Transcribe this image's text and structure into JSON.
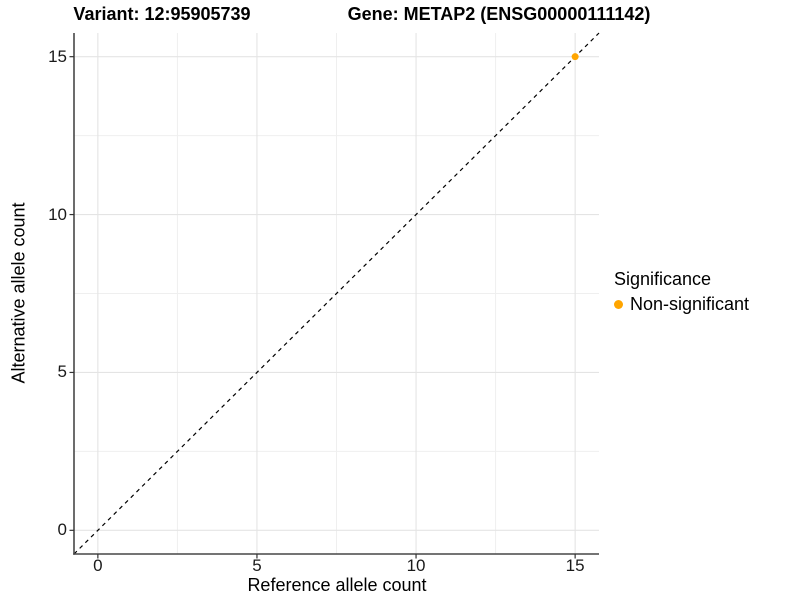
{
  "chart_data": {
    "type": "scatter",
    "titles": {
      "variant": "Variant: 12:95905739",
      "gene": "Gene: METAP2 (ENSG00000111142)"
    },
    "xlabel": "Reference allele count",
    "ylabel": "Alternative allele count",
    "xlim": [
      -0.75,
      15.75
    ],
    "ylim": [
      -0.75,
      15.75
    ],
    "x_major_ticks": [
      0,
      5,
      10,
      15
    ],
    "y_major_ticks": [
      0,
      5,
      10,
      15
    ],
    "x_minor_ticks": [
      2.5,
      7.5,
      12.5
    ],
    "y_minor_ticks": [
      2.5,
      7.5,
      12.5
    ],
    "grid": "major and minor gridlines, light gray on white panel",
    "series": [
      {
        "name": "Non-significant",
        "color": "#FFA500",
        "points": [
          {
            "x": 15,
            "y": 15
          }
        ]
      }
    ],
    "identity_line": {
      "description": "dashed y = x diagonal reference line spanning full panel",
      "style": "dashed",
      "color": "#000000"
    },
    "legend": {
      "title": "Significance",
      "position": "right",
      "entries": [
        {
          "label": "Non-significant",
          "color": "#FFA500"
        }
      ]
    }
  },
  "colors": {
    "background": "#FFFFFF",
    "grid_major": "#E4E4E4",
    "grid_minor": "#EFEFEF",
    "axis_line": "#474747",
    "tick_mark": "#333333",
    "point": "#FFA500"
  }
}
